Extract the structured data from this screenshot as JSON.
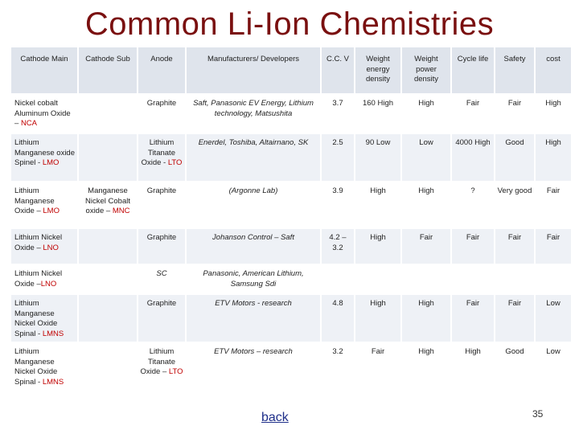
{
  "title": "Common Li-Ion Chemistries",
  "headers": [
    "Cathode Main",
    "Cathode Sub",
    "Anode",
    "Manufacturers/ Developers",
    "C.C. V",
    "Weight energy density",
    "Weight power density",
    "Cycle life",
    "Safety",
    "cost"
  ],
  "rows": [
    {
      "cathode_main": "Nickel cobalt Aluminum Oxide – ",
      "cathode_main_tag": "NCA",
      "cathode_sub": "",
      "cathode_sub_tag": "",
      "anode": "Graphite",
      "anode_tag": "",
      "manufacturers": "Saft, Panasonic EV Energy, Lithium technology, Matsushita",
      "ccv": "3.7",
      "energy": "160 High",
      "power": "High",
      "cycle": "Fair",
      "safety": "Fair",
      "cost": "High"
    },
    {
      "cathode_main": "Lithium Manganese oxide Spinel - ",
      "cathode_main_tag": "LMO",
      "cathode_sub": "",
      "cathode_sub_tag": "",
      "anode": "Lithium Titanate Oxide - ",
      "anode_tag": "LTO",
      "manufacturers": "Enerdel, Toshiba, Altairnano, SK",
      "ccv": "2.5",
      "energy": "90 Low",
      "power": "Low",
      "cycle": "4000 High",
      "safety": "Good",
      "cost": "High"
    },
    {
      "cathode_main": "Lithium Manganese Oxide – ",
      "cathode_main_tag": "LMO",
      "cathode_sub": "Manganese Nickel Cobalt oxide – ",
      "cathode_sub_tag": "MNC",
      "anode": "Graphite",
      "anode_tag": "",
      "manufacturers": "(Argonne Lab)",
      "ccv": "3.9",
      "energy": "High",
      "power": "High",
      "cycle": "?",
      "safety": "Very good",
      "cost": "Fair"
    },
    {
      "cathode_main": "Lithium Nickel Oxide – ",
      "cathode_main_tag": "LNO",
      "cathode_sub": "",
      "cathode_sub_tag": "",
      "anode": "Graphite",
      "anode_tag": "",
      "manufacturers": "Johanson Control – Saft",
      "ccv": "4.2 – 3.2",
      "energy": "High",
      "power": "Fair",
      "cycle": "Fair",
      "safety": "Fair",
      "cost": "Fair"
    },
    {
      "cathode_main": "Lithium Nickel Oxide –",
      "cathode_main_tag": "LNO",
      "cathode_sub": "",
      "cathode_sub_tag": "",
      "anode": "SC",
      "anode_tag": "",
      "manufacturers": "Panasonic, American Lithium, Samsung Sdi",
      "ccv": "",
      "energy": "",
      "power": "",
      "cycle": "",
      "safety": "",
      "cost": ""
    },
    {
      "cathode_main": "Lithium Manganese Nickel Oxide Spinal - ",
      "cathode_main_tag": "LMNS",
      "cathode_sub": "",
      "cathode_sub_tag": "",
      "anode": "Graphite",
      "anode_tag": "",
      "manufacturers": "ETV Motors - research",
      "ccv": "4.8",
      "energy": "High",
      "power": "High",
      "cycle": "Fair",
      "safety": "Fair",
      "cost": "Low"
    },
    {
      "cathode_main": "Lithium Manganese Nickel Oxide Spinal - ",
      "cathode_main_tag": "LMNS",
      "cathode_sub": "",
      "cathode_sub_tag": "",
      "anode": "Lithium Titanate Oxide – ",
      "anode_tag": "LTO",
      "manufacturers": "ETV Motors – research",
      "ccv": "3.2",
      "energy": "Fair",
      "power": "High",
      "cycle": "High",
      "safety": "Good",
      "cost": "Low"
    }
  ],
  "back_link": "back",
  "page_number": "35",
  "colors": {
    "title": "#7a1010",
    "tag": "#c00000",
    "header_bg": "#dfe4ec",
    "row_alt_bg": "#eef1f6",
    "link": "#1f2f8a"
  }
}
